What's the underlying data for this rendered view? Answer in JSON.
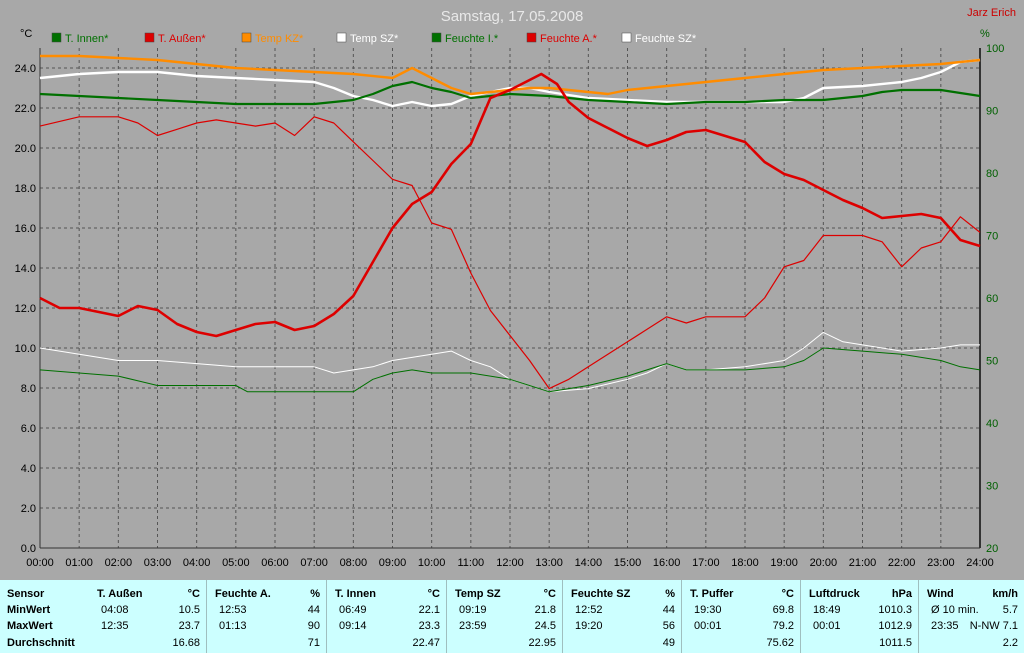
{
  "chart_data": {
    "type": "line",
    "title": "Samstag, 17.05.2008",
    "author": "Jarz Erich",
    "y_left_unit": "°C",
    "y_right_unit": "%",
    "y_left_ticks": [
      "0.0",
      "2.0",
      "4.0",
      "6.0",
      "8.0",
      "10.0",
      "12.0",
      "14.0",
      "16.0",
      "18.0",
      "20.0",
      "22.0",
      "24.0"
    ],
    "y_right_ticks": [
      "20",
      "30",
      "40",
      "50",
      "60",
      "70",
      "80",
      "90",
      "100"
    ],
    "x_ticks": [
      "00:00",
      "01:00",
      "02:00",
      "03:00",
      "04:00",
      "05:00",
      "06:00",
      "07:00",
      "08:00",
      "09:00",
      "10:00",
      "11:00",
      "12:00",
      "13:00",
      "14:00",
      "15:00",
      "16:00",
      "17:00",
      "18:00",
      "19:00",
      "20:00",
      "21:00",
      "22:00",
      "23:00",
      "24:00"
    ],
    "ylim_left": [
      0,
      25
    ],
    "ylim_right": [
      20,
      100
    ],
    "xlim": [
      0,
      24
    ],
    "grid": true,
    "legend_placement": "top",
    "colors": {
      "background": "#a8a8a8",
      "grid": "#555555",
      "title": "#e8e8e8",
      "author": "#cc0000"
    },
    "series": [
      {
        "name": "T. Innen*",
        "axis": "left",
        "color": "#007000",
        "width": 2.2,
        "points": [
          [
            0,
            22.7
          ],
          [
            1,
            22.6
          ],
          [
            2,
            22.5
          ],
          [
            3,
            22.4
          ],
          [
            4,
            22.3
          ],
          [
            5,
            22.2
          ],
          [
            6,
            22.2
          ],
          [
            7,
            22.2
          ],
          [
            8,
            22.4
          ],
          [
            8.5,
            22.7
          ],
          [
            9,
            23.1
          ],
          [
            9.5,
            23.3
          ],
          [
            10,
            23.0
          ],
          [
            10.5,
            22.8
          ],
          [
            11,
            22.5
          ],
          [
            11.5,
            22.6
          ],
          [
            12,
            22.7
          ],
          [
            13,
            22.6
          ],
          [
            14,
            22.4
          ],
          [
            15,
            22.3
          ],
          [
            16,
            22.2
          ],
          [
            17,
            22.3
          ],
          [
            18,
            22.3
          ],
          [
            19,
            22.4
          ],
          [
            20,
            22.4
          ],
          [
            21,
            22.6
          ],
          [
            21.5,
            22.8
          ],
          [
            22,
            22.9
          ],
          [
            23,
            22.9
          ],
          [
            24,
            22.6
          ]
        ]
      },
      {
        "name": "T. Außen*",
        "axis": "left",
        "color": "#dd0000",
        "width": 2.6,
        "points": [
          [
            0,
            12.5
          ],
          [
            0.5,
            12.0
          ],
          [
            1,
            12.0
          ],
          [
            1.5,
            11.8
          ],
          [
            2,
            11.6
          ],
          [
            2.5,
            12.1
          ],
          [
            3,
            11.9
          ],
          [
            3.5,
            11.2
          ],
          [
            4,
            10.8
          ],
          [
            4.5,
            10.6
          ],
          [
            5,
            10.9
          ],
          [
            5.5,
            11.2
          ],
          [
            6,
            11.3
          ],
          [
            6.5,
            10.9
          ],
          [
            7,
            11.1
          ],
          [
            7.5,
            11.7
          ],
          [
            8,
            12.6
          ],
          [
            8.5,
            14.3
          ],
          [
            9,
            16.0
          ],
          [
            9.5,
            17.2
          ],
          [
            10,
            17.8
          ],
          [
            10.5,
            19.2
          ],
          [
            11,
            20.2
          ],
          [
            11.5,
            22.5
          ],
          [
            12,
            22.9
          ],
          [
            12.5,
            23.4
          ],
          [
            12.8,
            23.7
          ],
          [
            13.2,
            23.2
          ],
          [
            13.5,
            22.3
          ],
          [
            14,
            21.5
          ],
          [
            14.5,
            21.0
          ],
          [
            15,
            20.5
          ],
          [
            15.5,
            20.1
          ],
          [
            16,
            20.4
          ],
          [
            16.5,
            20.8
          ],
          [
            17,
            20.9
          ],
          [
            17.5,
            20.6
          ],
          [
            18,
            20.3
          ],
          [
            18.5,
            19.3
          ],
          [
            19,
            18.7
          ],
          [
            19.5,
            18.4
          ],
          [
            20,
            17.9
          ],
          [
            20.5,
            17.4
          ],
          [
            21,
            17.0
          ],
          [
            21.5,
            16.5
          ],
          [
            22,
            16.6
          ],
          [
            22.5,
            16.7
          ],
          [
            23,
            16.5
          ],
          [
            23.5,
            15.4
          ],
          [
            24,
            15.1
          ]
        ]
      },
      {
        "name": "Temp KZ*",
        "axis": "left",
        "color": "#ff8c00",
        "width": 2.4,
        "points": [
          [
            0,
            24.6
          ],
          [
            1,
            24.6
          ],
          [
            2,
            24.5
          ],
          [
            3,
            24.4
          ],
          [
            4,
            24.2
          ],
          [
            5,
            24.0
          ],
          [
            6,
            23.9
          ],
          [
            7,
            23.8
          ],
          [
            8,
            23.7
          ],
          [
            9,
            23.5
          ],
          [
            9.5,
            24.0
          ],
          [
            10,
            23.5
          ],
          [
            10.5,
            23.0
          ],
          [
            11,
            22.7
          ],
          [
            11.5,
            22.8
          ],
          [
            12,
            22.9
          ],
          [
            12.5,
            23.0
          ],
          [
            13,
            23.0
          ],
          [
            13.5,
            22.9
          ],
          [
            14,
            22.8
          ],
          [
            14.5,
            22.7
          ],
          [
            15,
            22.9
          ],
          [
            16,
            23.1
          ],
          [
            17,
            23.3
          ],
          [
            18,
            23.5
          ],
          [
            19,
            23.7
          ],
          [
            20,
            23.9
          ],
          [
            21,
            24.0
          ],
          [
            22,
            24.1
          ],
          [
            23,
            24.2
          ],
          [
            24,
            24.4
          ]
        ]
      },
      {
        "name": "Temp SZ*",
        "axis": "left",
        "color": "#ffffff",
        "width": 2.4,
        "points": [
          [
            0,
            23.5
          ],
          [
            1,
            23.7
          ],
          [
            2,
            23.8
          ],
          [
            3,
            23.8
          ],
          [
            4,
            23.6
          ],
          [
            5,
            23.5
          ],
          [
            6,
            23.4
          ],
          [
            7,
            23.3
          ],
          [
            7.5,
            23.0
          ],
          [
            8,
            22.6
          ],
          [
            8.5,
            22.4
          ],
          [
            9,
            22.1
          ],
          [
            9.5,
            22.3
          ],
          [
            10,
            22.1
          ],
          [
            10.5,
            22.2
          ],
          [
            11,
            22.6
          ],
          [
            11.5,
            22.8
          ],
          [
            12,
            23.0
          ],
          [
            12.5,
            23.0
          ],
          [
            13,
            22.8
          ],
          [
            14,
            22.5
          ],
          [
            15,
            22.4
          ],
          [
            16,
            22.3
          ],
          [
            17,
            22.3
          ],
          [
            18,
            22.3
          ],
          [
            19,
            22.3
          ],
          [
            19.5,
            22.5
          ],
          [
            20,
            23.0
          ],
          [
            21,
            23.1
          ],
          [
            22,
            23.3
          ],
          [
            22.5,
            23.5
          ],
          [
            23,
            23.8
          ],
          [
            23.5,
            24.3
          ],
          [
            24,
            24.4
          ]
        ]
      },
      {
        "name": "Feuchte I.*",
        "axis": "right",
        "color": "#007000",
        "width": 1,
        "points": [
          [
            0,
            48.5
          ],
          [
            1,
            48
          ],
          [
            2,
            47.5
          ],
          [
            3,
            46
          ],
          [
            4,
            46
          ],
          [
            5,
            46
          ],
          [
            5.3,
            45
          ],
          [
            6,
            45
          ],
          [
            7,
            45
          ],
          [
            8,
            45
          ],
          [
            8.5,
            47
          ],
          [
            9,
            48
          ],
          [
            9.5,
            48.5
          ],
          [
            10,
            48
          ],
          [
            11,
            48
          ],
          [
            12,
            47
          ],
          [
            12.5,
            46
          ],
          [
            13,
            45
          ],
          [
            14,
            46
          ],
          [
            15,
            47.5
          ],
          [
            16,
            49.5
          ],
          [
            16.5,
            48.5
          ],
          [
            17,
            48.5
          ],
          [
            18,
            48.5
          ],
          [
            19,
            49
          ],
          [
            19.5,
            50
          ],
          [
            20,
            52
          ],
          [
            21,
            51.5
          ],
          [
            22,
            51
          ],
          [
            23,
            50
          ],
          [
            23.5,
            49
          ],
          [
            24,
            48.5
          ]
        ]
      },
      {
        "name": "Feuchte A.*",
        "axis": "right",
        "color": "#dd0000",
        "width": 1.2,
        "points": [
          [
            0,
            87.5
          ],
          [
            1,
            89
          ],
          [
            2,
            89
          ],
          [
            2.5,
            88
          ],
          [
            3,
            86
          ],
          [
            3.5,
            87
          ],
          [
            4,
            88
          ],
          [
            4.5,
            88.5
          ],
          [
            5,
            88
          ],
          [
            5.5,
            87.5
          ],
          [
            6,
            88
          ],
          [
            6.5,
            86
          ],
          [
            7,
            89
          ],
          [
            7.5,
            88
          ],
          [
            8,
            85
          ],
          [
            8.5,
            82
          ],
          [
            9,
            79
          ],
          [
            9.5,
            78
          ],
          [
            10,
            72
          ],
          [
            10.5,
            71
          ],
          [
            11,
            64
          ],
          [
            11.5,
            58
          ],
          [
            12,
            54
          ],
          [
            12.5,
            50
          ],
          [
            13,
            45.5
          ],
          [
            13.5,
            47
          ],
          [
            14,
            49
          ],
          [
            14.5,
            51
          ],
          [
            15,
            53
          ],
          [
            15.5,
            55
          ],
          [
            16,
            57
          ],
          [
            16.5,
            56
          ],
          [
            17,
            57
          ],
          [
            17.5,
            57
          ],
          [
            18,
            57
          ],
          [
            18.5,
            60
          ],
          [
            19,
            65
          ],
          [
            19.5,
            66
          ],
          [
            20,
            70
          ],
          [
            21,
            70
          ],
          [
            21.5,
            69
          ],
          [
            22,
            65
          ],
          [
            22.5,
            68
          ],
          [
            23,
            69
          ],
          [
            23.5,
            73
          ],
          [
            24,
            70.5
          ]
        ]
      },
      {
        "name": "Feuchte SZ*",
        "axis": "right",
        "color": "#ffffff",
        "width": 1,
        "points": [
          [
            0,
            52
          ],
          [
            1,
            51
          ],
          [
            2,
            50
          ],
          [
            3,
            50
          ],
          [
            4,
            49.5
          ],
          [
            5,
            49
          ],
          [
            6,
            49
          ],
          [
            7,
            49
          ],
          [
            7.5,
            48
          ],
          [
            8,
            48.5
          ],
          [
            8.5,
            49
          ],
          [
            9,
            50
          ],
          [
            9.5,
            50.5
          ],
          [
            10,
            51
          ],
          [
            10.5,
            51.5
          ],
          [
            11,
            50
          ],
          [
            11.5,
            49
          ],
          [
            12,
            47
          ],
          [
            12.5,
            46
          ],
          [
            13,
            45
          ],
          [
            14,
            45.5
          ],
          [
            15,
            47
          ],
          [
            15.5,
            48
          ],
          [
            16,
            49.5
          ],
          [
            16.5,
            48.5
          ],
          [
            17,
            48.5
          ],
          [
            18,
            49
          ],
          [
            19,
            50
          ],
          [
            19.5,
            52
          ],
          [
            20,
            54.5
          ],
          [
            20.5,
            53
          ],
          [
            21,
            52.5
          ],
          [
            22,
            51.5
          ],
          [
            23,
            52
          ],
          [
            23.5,
            52.5
          ],
          [
            24,
            52.5
          ]
        ]
      }
    ]
  },
  "stats_table": {
    "row_labels": [
      "Sensor",
      "MinWert",
      "MaxWert",
      "Durchschnitt"
    ],
    "columns": [
      {
        "name": "T. Außen",
        "unit": "°C",
        "rows": [
          [
            "04:08",
            "10.5"
          ],
          [
            "12:35",
            "23.7"
          ],
          [
            "",
            "16.68"
          ]
        ]
      },
      {
        "name": "Feuchte A.",
        "unit": "%",
        "rows": [
          [
            "12:53",
            "44"
          ],
          [
            "01:13",
            "90"
          ],
          [
            "",
            "71"
          ]
        ]
      },
      {
        "name": "T. Innen",
        "unit": "°C",
        "rows": [
          [
            "06:49",
            "22.1"
          ],
          [
            "09:14",
            "23.3"
          ],
          [
            "",
            "22.47"
          ]
        ]
      },
      {
        "name": "Temp SZ",
        "unit": "°C",
        "rows": [
          [
            "09:19",
            "21.8"
          ],
          [
            "23:59",
            "24.5"
          ],
          [
            "",
            "22.95"
          ]
        ]
      },
      {
        "name": "Feuchte SZ",
        "unit": "%",
        "rows": [
          [
            "12:52",
            "44"
          ],
          [
            "19:20",
            "56"
          ],
          [
            "",
            "49"
          ]
        ]
      },
      {
        "name": "T. Puffer",
        "unit": "°C",
        "rows": [
          [
            "19:30",
            "69.8"
          ],
          [
            "00:01",
            "79.2"
          ],
          [
            "",
            "75.62"
          ]
        ]
      },
      {
        "name": "Luftdruck",
        "unit": "hPa",
        "rows": [
          [
            "18:49",
            "1010.3"
          ],
          [
            "00:01",
            "1012.9"
          ],
          [
            "",
            "1011.5"
          ]
        ]
      },
      {
        "name": "Wind",
        "unit": "km/h",
        "rows": [
          [
            "Ø 10 min.",
            "5.7"
          ],
          [
            "23:35",
            "N-NW 7.1"
          ],
          [
            "",
            "2.2"
          ]
        ]
      }
    ]
  }
}
